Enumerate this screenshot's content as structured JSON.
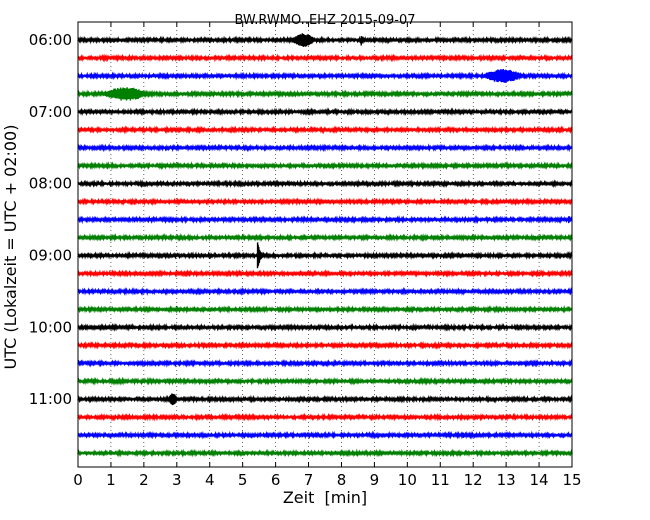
{
  "chart_data": {
    "type": "line",
    "title": "BW.RWMO..EHZ 2015-09-07",
    "xlabel": "Zeit  [min]",
    "ylabel": "UTC (Lokalzeit = UTC + 02:00)",
    "xlim": [
      0,
      15
    ],
    "x_ticks": [
      "0",
      "1",
      "2",
      "3",
      "4",
      "5",
      "6",
      "7",
      "8",
      "9",
      "10",
      "11",
      "12",
      "13",
      "14",
      "15"
    ],
    "y_ticks": [
      {
        "label": "06:00",
        "trace": 0
      },
      {
        "label": "07:00",
        "trace": 4
      },
      {
        "label": "08:00",
        "trace": 8
      },
      {
        "label": "09:00",
        "trace": 12
      },
      {
        "label": "10:00",
        "trace": 16
      },
      {
        "label": "11:00",
        "trace": 20
      }
    ],
    "grid": "x-dotted",
    "trace_minutes": 15,
    "trace_colors": [
      "#000000",
      "#ff0000",
      "#0000ff",
      "#008000"
    ],
    "traces": [
      {
        "start": "06:00",
        "events": [
          {
            "t": 6.5,
            "dur": 0.8,
            "amp": 7,
            "kind": "burst"
          },
          {
            "t": 8.6,
            "dur": 0.25,
            "amp": 6,
            "kind": "spike"
          }
        ]
      },
      {
        "start": "06:15",
        "events": []
      },
      {
        "start": "06:30",
        "events": [
          {
            "t": 12.3,
            "dur": 1.4,
            "amp": 7,
            "kind": "burst"
          }
        ]
      },
      {
        "start": "06:45",
        "events": [
          {
            "t": 0.75,
            "dur": 1.6,
            "amp": 7,
            "kind": "burst"
          }
        ]
      },
      {
        "start": "07:00",
        "events": []
      },
      {
        "start": "07:15",
        "events": []
      },
      {
        "start": "07:30",
        "events": []
      },
      {
        "start": "07:45",
        "events": []
      },
      {
        "start": "08:00",
        "events": []
      },
      {
        "start": "08:15",
        "events": []
      },
      {
        "start": "08:30",
        "events": [
          {
            "t": 14.9,
            "dur": 0.1,
            "amp": 4,
            "kind": "spike"
          }
        ]
      },
      {
        "start": "08:45",
        "events": []
      },
      {
        "start": "09:00",
        "events": [
          {
            "t": 5.45,
            "dur": 0.35,
            "amp": 16,
            "kind": "spike"
          }
        ]
      },
      {
        "start": "09:15",
        "events": []
      },
      {
        "start": "09:30",
        "events": []
      },
      {
        "start": "09:45",
        "events": []
      },
      {
        "start": "10:00",
        "events": [
          {
            "t": 0.2,
            "dur": 0.8,
            "amp": 2,
            "kind": "burst"
          }
        ]
      },
      {
        "start": "10:15",
        "events": []
      },
      {
        "start": "10:30",
        "events": []
      },
      {
        "start": "10:45",
        "events": []
      },
      {
        "start": "11:00",
        "events": [
          {
            "t": 2.75,
            "dur": 0.3,
            "amp": 6,
            "kind": "burst"
          }
        ]
      },
      {
        "start": "11:15",
        "events": []
      },
      {
        "start": "11:30",
        "events": [
          {
            "t": 8.0,
            "dur": 0.2,
            "amp": 3,
            "kind": "spike"
          },
          {
            "t": 10.0,
            "dur": 0.15,
            "amp": 3,
            "kind": "spike"
          },
          {
            "t": 11.7,
            "dur": 0.15,
            "amp": 3,
            "kind": "spike"
          }
        ]
      },
      {
        "start": "11:45",
        "events": []
      }
    ]
  }
}
